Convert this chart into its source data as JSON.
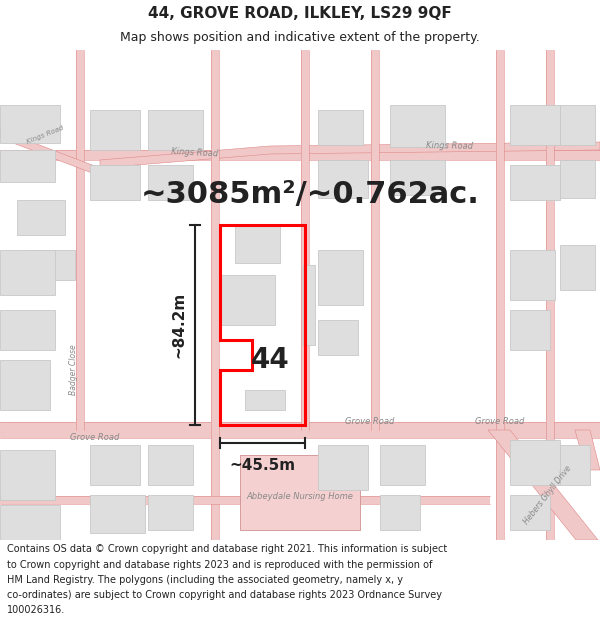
{
  "title_line1": "44, GROVE ROAD, ILKLEY, LS29 9QF",
  "title_line2": "Map shows position and indicative extent of the property.",
  "area_text": "~3085m²/~0.762ac.",
  "label_44": "44",
  "dim_height": "~84.2m",
  "dim_width": "~45.5m",
  "footer_lines": [
    "Contains OS data © Crown copyright and database right 2021. This information is subject",
    "to Crown copyright and database rights 2023 and is reproduced with the permission of",
    "HM Land Registry. The polygons (including the associated geometry, namely x, y",
    "co-ordinates) are subject to Crown copyright and database rights 2023 Ordnance Survey",
    "100026316."
  ],
  "map_bg": "#f7f4f0",
  "title_bg": "#ffffff",
  "footer_bg": "#ffffff",
  "road_fill": "#f0c8c8",
  "road_casing": "#e08888",
  "road_major_fill": "#e8b0b0",
  "building_fill": "#dedede",
  "building_stroke": "#c8c8c8",
  "property_stroke": "#ff0000",
  "property_fill": "none",
  "nursing_fill": "#f5d0d0",
  "dim_color": "#222222",
  "text_color": "#222222",
  "road_label_color": "#888888",
  "title_fontsize": 11,
  "subtitle_fontsize": 9,
  "area_fontsize": 22,
  "label44_fontsize": 20,
  "dim_fontsize": 11,
  "footer_fontsize": 7
}
